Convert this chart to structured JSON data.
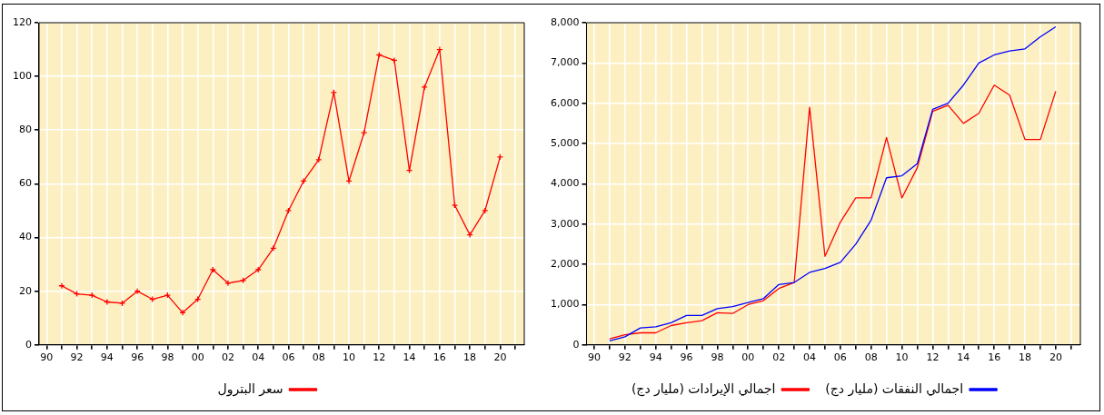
{
  "chart_data": [
    {
      "type": "line",
      "x": [
        1991,
        1992,
        1993,
        1994,
        1995,
        1996,
        1997,
        1998,
        1999,
        2000,
        2001,
        2002,
        2003,
        2004,
        2005,
        2006,
        2007,
        2008,
        2009,
        2010,
        2011,
        2012,
        2013,
        2014,
        2015,
        2016,
        2017,
        2018,
        2019,
        2020
      ],
      "series": [
        {
          "name": "سعر البترول",
          "color": "#ff0000",
          "values": [
            22,
            19,
            18.5,
            16,
            15.5,
            20,
            17,
            18.5,
            12,
            17,
            28,
            23,
            24,
            28,
            36,
            50,
            61,
            69,
            94,
            61,
            79,
            108,
            106,
            65,
            96,
            110,
            52,
            41,
            50,
            70
          ]
        }
      ],
      "xlim": [
        1989.5,
        2021.6
      ],
      "xticks": [
        {
          "value": 1990,
          "label": "90"
        },
        {
          "value": 1991,
          "label": null
        },
        {
          "value": 1992,
          "label": "92"
        },
        {
          "value": 1993,
          "label": null
        },
        {
          "value": 1994,
          "label": "94"
        },
        {
          "value": 1995,
          "label": null
        },
        {
          "value": 1996,
          "label": "96"
        },
        {
          "value": 1997,
          "label": null
        },
        {
          "value": 1998,
          "label": "98"
        },
        {
          "value": 1999,
          "label": null
        },
        {
          "value": 2000,
          "label": "00"
        },
        {
          "value": 2001,
          "label": null
        },
        {
          "value": 2002,
          "label": "02"
        },
        {
          "value": 2003,
          "label": null
        },
        {
          "value": 2004,
          "label": "04"
        },
        {
          "value": 2005,
          "label": null
        },
        {
          "value": 2006,
          "label": "06"
        },
        {
          "value": 2007,
          "label": null
        },
        {
          "value": 2008,
          "label": "08"
        },
        {
          "value": 2009,
          "label": null
        },
        {
          "value": 2010,
          "label": "10"
        },
        {
          "value": 2011,
          "label": null
        },
        {
          "value": 2012,
          "label": "12"
        },
        {
          "value": 2013,
          "label": null
        },
        {
          "value": 2014,
          "label": "14"
        },
        {
          "value": 2015,
          "label": null
        },
        {
          "value": 2016,
          "label": "16"
        },
        {
          "value": 2017,
          "label": null
        },
        {
          "value": 2018,
          "label": "18"
        },
        {
          "value": 2019,
          "label": null
        },
        {
          "value": 2020,
          "label": "20"
        },
        {
          "value": 2021,
          "label": null
        }
      ],
      "ylim": [
        0,
        120
      ],
      "yticks": [
        0,
        20,
        40,
        60,
        80,
        100,
        120
      ],
      "grid": true,
      "legend": "bottom",
      "marker": "cross",
      "line_style": "solid"
    },
    {
      "type": "line",
      "x": [
        1991,
        1992,
        1993,
        1994,
        1995,
        1996,
        1997,
        1998,
        1999,
        2000,
        2001,
        2002,
        2003,
        2004,
        2005,
        2006,
        2007,
        2008,
        2009,
        2010,
        2011,
        2012,
        2013,
        2014,
        2015,
        2016,
        2017,
        2018,
        2019,
        2020
      ],
      "series": [
        {
          "name": "اجمالي النفقات (مليار دج)",
          "color": "#0000ff",
          "values": [
            100,
            200,
            420,
            450,
            550,
            730,
            730,
            900,
            950,
            1050,
            1150,
            1500,
            1550,
            1800,
            1900,
            2050,
            2500,
            3100,
            4150,
            4200,
            4500,
            5850,
            6000,
            6450,
            7000,
            7200,
            7300,
            7350,
            7650,
            7900
          ]
        },
        {
          "name": "اجمالي الإيرادات (مليار دج)",
          "color": "#ff0000",
          "values": [
            150,
            250,
            300,
            300,
            480,
            550,
            600,
            800,
            780,
            1000,
            1100,
            1400,
            1550,
            5900,
            2200,
            3050,
            3650,
            3650,
            5150,
            3650,
            4400,
            5800,
            5950,
            5500,
            5750,
            6450,
            6200,
            5100,
            5100,
            6300
          ]
        }
      ],
      "xlim": [
        1989.5,
        2021.6
      ],
      "xticks": [
        {
          "value": 1990,
          "label": "90"
        },
        {
          "value": 1991,
          "label": null
        },
        {
          "value": 1992,
          "label": "92"
        },
        {
          "value": 1993,
          "label": null
        },
        {
          "value": 1994,
          "label": "94"
        },
        {
          "value": 1995,
          "label": null
        },
        {
          "value": 1996,
          "label": "96"
        },
        {
          "value": 1997,
          "label": null
        },
        {
          "value": 1998,
          "label": "98"
        },
        {
          "value": 1999,
          "label": null
        },
        {
          "value": 2000,
          "label": "00"
        },
        {
          "value": 2001,
          "label": null
        },
        {
          "value": 2002,
          "label": "02"
        },
        {
          "value": 2003,
          "label": null
        },
        {
          "value": 2004,
          "label": "04"
        },
        {
          "value": 2005,
          "label": null
        },
        {
          "value": 2006,
          "label": "06"
        },
        {
          "value": 2007,
          "label": null
        },
        {
          "value": 2008,
          "label": "08"
        },
        {
          "value": 2009,
          "label": null
        },
        {
          "value": 2010,
          "label": "10"
        },
        {
          "value": 2011,
          "label": null
        },
        {
          "value": 2012,
          "label": "12"
        },
        {
          "value": 2013,
          "label": null
        },
        {
          "value": 2014,
          "label": "14"
        },
        {
          "value": 2015,
          "label": null
        },
        {
          "value": 2016,
          "label": "16"
        },
        {
          "value": 2017,
          "label": null
        },
        {
          "value": 2018,
          "label": "18"
        },
        {
          "value": 2019,
          "label": null
        },
        {
          "value": 2020,
          "label": "20"
        },
        {
          "value": 2021,
          "label": null
        }
      ],
      "ylim": [
        0,
        8000
      ],
      "yticks": [
        {
          "value": 0,
          "label": "0"
        },
        {
          "value": 1000,
          "label": "1,000"
        },
        {
          "value": 2000,
          "label": "2,000"
        },
        {
          "value": 3000,
          "label": "3,000"
        },
        {
          "value": 4000,
          "label": "4,000"
        },
        {
          "value": 5000,
          "label": "5,000"
        },
        {
          "value": 6000,
          "label": "6,000"
        },
        {
          "value": 7000,
          "label": "7,000"
        },
        {
          "value": 8000,
          "label": "8,000"
        }
      ],
      "grid": true,
      "legend": "bottom",
      "line_style": "solid"
    }
  ]
}
